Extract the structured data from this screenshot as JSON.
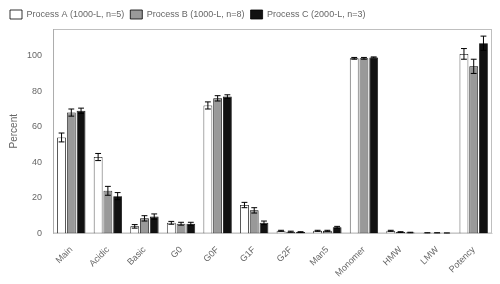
{
  "chart_data": {
    "type": "bar",
    "categories": [
      "Main",
      "Acidic",
      "Basic",
      "G0",
      "G0F",
      "G1F",
      "G2F",
      "Man5",
      "Monomer",
      "HMW",
      "LMW",
      "Potency"
    ],
    "series": [
      {
        "name": "Process A (1000-L, n=5)",
        "color": "#ffffff",
        "values": [
          54,
          43,
          4,
          6,
          72,
          16,
          1.5,
          1.5,
          98.5,
          1.5,
          0.3,
          101
        ],
        "errors": [
          2.5,
          2.0,
          1.0,
          0.8,
          2.0,
          1.5,
          0.3,
          0.3,
          0.5,
          0.3,
          0.1,
          3.0
        ]
      },
      {
        "name": "Process B (1000-L, n=8)",
        "color": "#999999",
        "values": [
          68,
          24,
          8.5,
          5.5,
          76,
          13,
          1.0,
          1.5,
          98.5,
          0.8,
          0.3,
          94
        ],
        "errors": [
          2.0,
          2.5,
          1.5,
          0.8,
          1.5,
          1.5,
          0.3,
          0.3,
          0.5,
          0.2,
          0.1,
          4.0
        ]
      },
      {
        "name": "Process C (2000-L, n=3)",
        "color": "#111111",
        "values": [
          69,
          21,
          9.5,
          5.5,
          77,
          6,
          0.8,
          3.5,
          99,
          0.5,
          0.2,
          107
        ],
        "errors": [
          1.5,
          2.0,
          1.5,
          0.8,
          1.0,
          1.0,
          0.2,
          0.5,
          0.3,
          0.2,
          0.1,
          4.0
        ]
      }
    ],
    "ylabel": "Percent",
    "ylim": [
      0,
      115
    ],
    "yticks": [
      0,
      20,
      40,
      60,
      80,
      100
    ],
    "grid": false,
    "legend": "upper left"
  }
}
